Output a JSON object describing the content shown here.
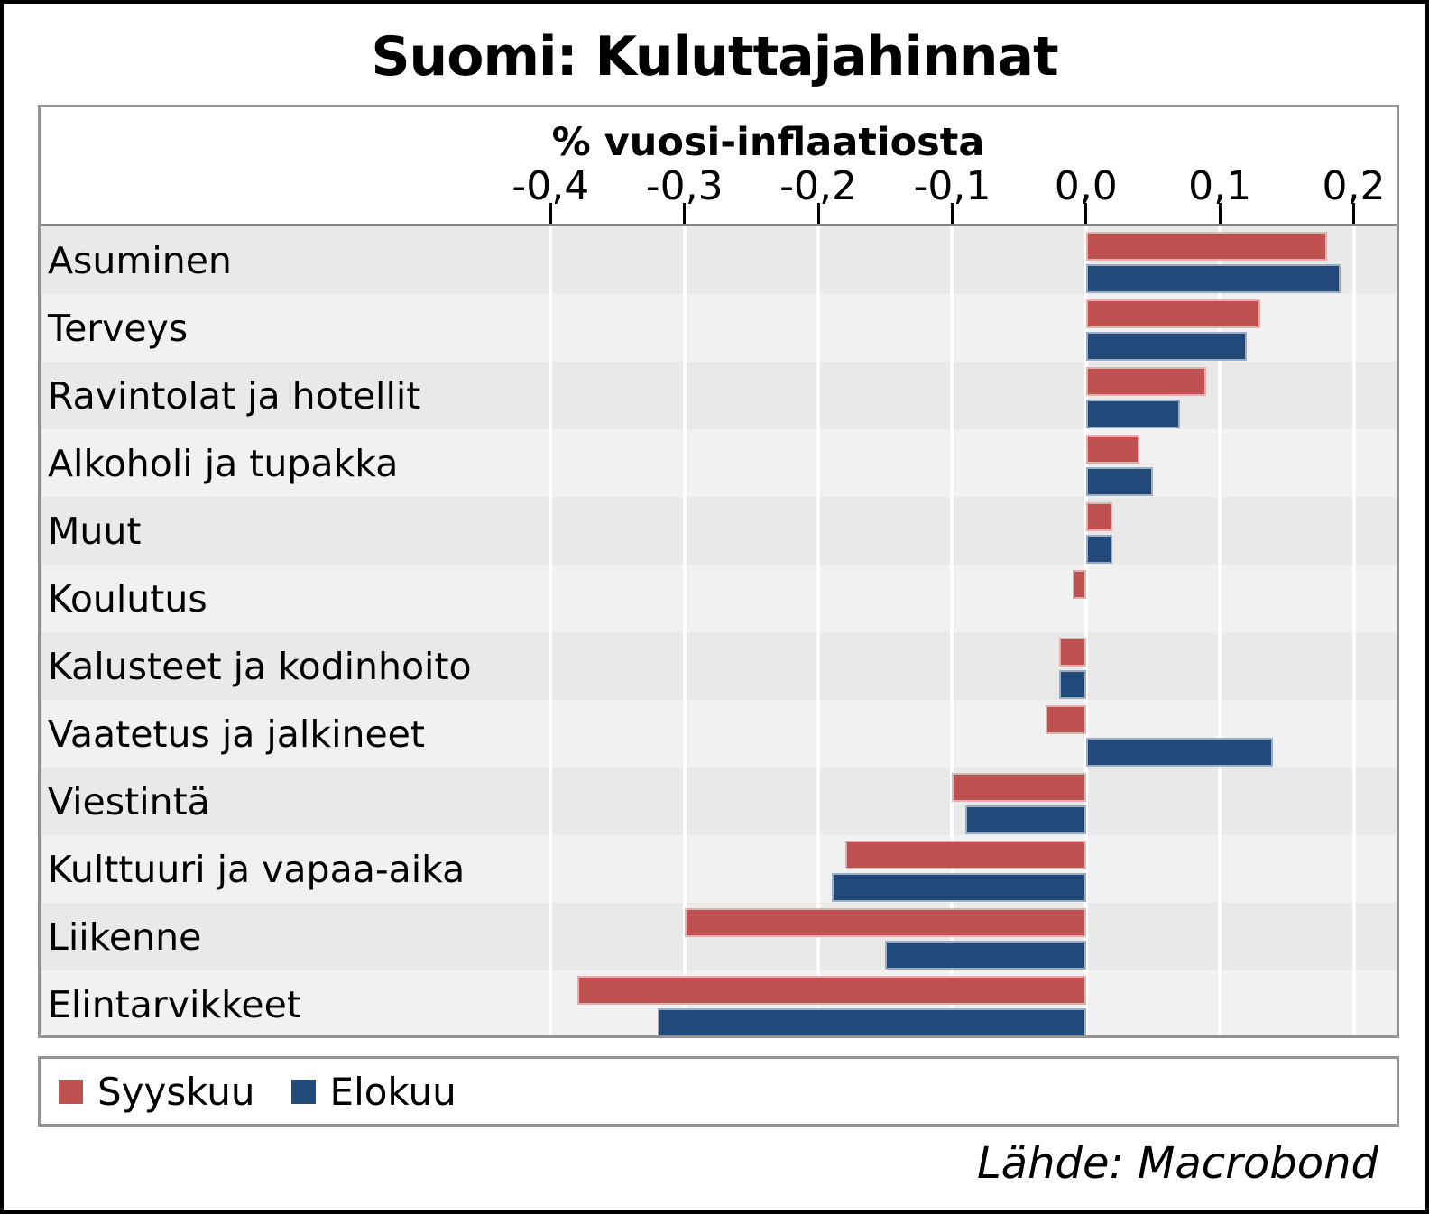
{
  "title": "Suomi: Kuluttajahinnat",
  "source": "Lähde: Macrobond",
  "colors": {
    "syyskuu_red": "#c05151",
    "elokuu_blue": "#214a7b",
    "row_stripe_dark": "#e9e9e9",
    "row_stripe_light": "#f1f1f1",
    "box_border_gray": "#949494"
  },
  "legend": {
    "items": [
      {
        "label": "Syyskuu",
        "color": "#c05151"
      },
      {
        "label": "Elokuu",
        "color": "#214a7b"
      }
    ]
  },
  "chart_data": {
    "type": "bar",
    "orientation": "horizontal",
    "title": "% vuosi-inflaatiosta",
    "categories": [
      "Asuminen",
      "Terveys",
      "Ravintolat ja hotellit",
      "Alkoholi ja tupakka",
      "Muut",
      "Koulutus",
      "Kalusteet ja kodinhoito",
      "Vaatetus ja jalkineet",
      "Viestintä",
      "Kulttuuri ja vapaa-aika",
      "Liikenne",
      "Elintarvikkeet"
    ],
    "series": [
      {
        "name": "Syyskuu",
        "color": "#c05151",
        "values": [
          0.18,
          0.13,
          0.09,
          0.04,
          0.02,
          -0.01,
          -0.02,
          -0.03,
          -0.1,
          -0.18,
          -0.3,
          -0.38
        ]
      },
      {
        "name": "Elokuu",
        "color": "#214a7b",
        "values": [
          0.19,
          0.12,
          0.07,
          0.05,
          0.02,
          0.0,
          -0.02,
          0.14,
          -0.09,
          -0.19,
          -0.15,
          -0.32
        ]
      }
    ],
    "x_ticks": [
      {
        "value": -0.4,
        "label": "-0,4"
      },
      {
        "value": -0.3,
        "label": "-0,3"
      },
      {
        "value": -0.2,
        "label": "-0,2"
      },
      {
        "value": -0.1,
        "label": "-0,1"
      },
      {
        "value": 0.0,
        "label": "0,0"
      },
      {
        "value": 0.1,
        "label": "0,1"
      },
      {
        "value": 0.2,
        "label": "0,2"
      }
    ],
    "xlim": [
      -0.781,
      0.232
    ],
    "grid": "vertical-white-lines",
    "legend_position": "bottom"
  }
}
